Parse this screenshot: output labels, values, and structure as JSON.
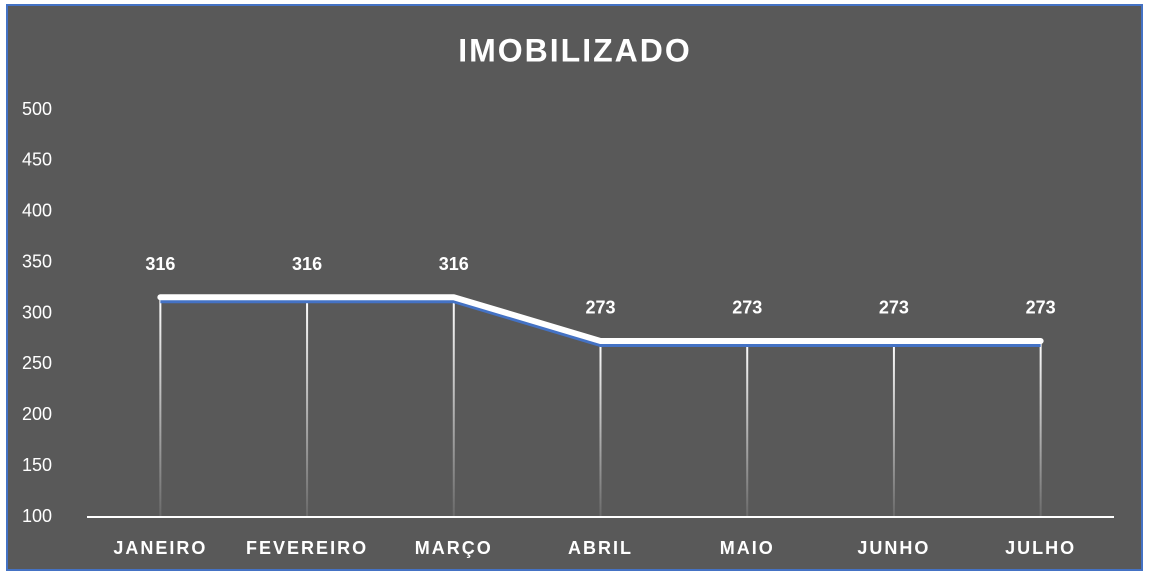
{
  "chart_data": {
    "type": "line",
    "title": "IMOBILIZADO",
    "categories": [
      "JANEIRO",
      "FEVEREIRO",
      "MARÇO",
      "ABRIL",
      "MAIO",
      "JUNHO",
      "JULHO"
    ],
    "values": [
      316,
      316,
      316,
      273,
      273,
      273,
      273
    ],
    "color": "#ffffff",
    "ylim": [
      100,
      500
    ],
    "yticks": [
      100,
      150,
      200,
      250,
      300,
      350,
      400,
      450,
      500
    ],
    "drop_lines": true
  }
}
